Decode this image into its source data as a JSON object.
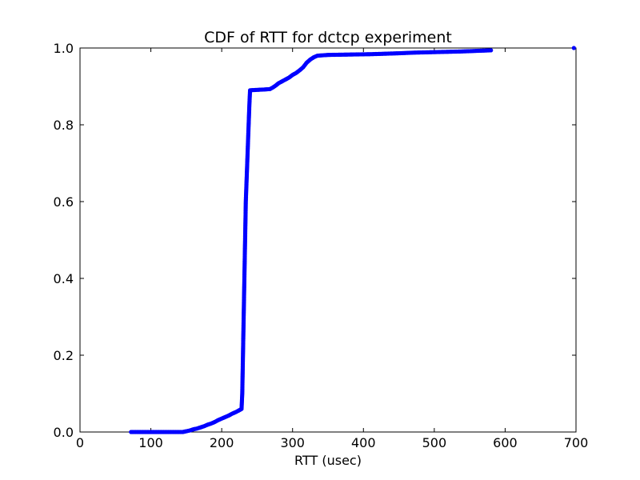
{
  "chart_data": {
    "type": "scatter",
    "title": "CDF of RTT for dctcp experiment",
    "xlabel": "RTT (usec)",
    "ylabel": "",
    "xlim": [
      0,
      700
    ],
    "ylim": [
      0,
      1.0
    ],
    "xticks": [
      0,
      100,
      200,
      300,
      400,
      500,
      600,
      700
    ],
    "xtick_labels": [
      "0",
      "100",
      "200",
      "300",
      "400",
      "500",
      "600",
      "700"
    ],
    "yticks": [
      0.0,
      0.2,
      0.4,
      0.6,
      0.8,
      1.0
    ],
    "ytick_labels": [
      "0.0",
      "0.2",
      "0.4",
      "0.6",
      "0.8",
      "1.0"
    ],
    "grid": false,
    "marker_color": "#0000ff",
    "series": [
      {
        "name": "",
        "points": [
          [
            72,
            0.0
          ],
          [
            82,
            0.0
          ],
          [
            92,
            0.0
          ],
          [
            108,
            0.0
          ],
          [
            113,
            0.0
          ],
          [
            145,
            0.0
          ],
          [
            150,
            0.002
          ],
          [
            155,
            0.004
          ],
          [
            160,
            0.007
          ],
          [
            165,
            0.009
          ],
          [
            170,
            0.012
          ],
          [
            175,
            0.015
          ],
          [
            180,
            0.019
          ],
          [
            185,
            0.022
          ],
          [
            190,
            0.026
          ],
          [
            195,
            0.031
          ],
          [
            200,
            0.035
          ],
          [
            205,
            0.039
          ],
          [
            210,
            0.043
          ],
          [
            215,
            0.048
          ],
          [
            220,
            0.052
          ],
          [
            225,
            0.057
          ],
          [
            228,
            0.06
          ],
          [
            229,
            0.1
          ],
          [
            230,
            0.2
          ],
          [
            231,
            0.3
          ],
          [
            232,
            0.4
          ],
          [
            233,
            0.5
          ],
          [
            234,
            0.6
          ],
          [
            236,
            0.7
          ],
          [
            238,
            0.8
          ],
          [
            239,
            0.85
          ],
          [
            240,
            0.89
          ],
          [
            260,
            0.892
          ],
          [
            268,
            0.893
          ],
          [
            272,
            0.897
          ],
          [
            276,
            0.902
          ],
          [
            280,
            0.908
          ],
          [
            285,
            0.913
          ],
          [
            290,
            0.918
          ],
          [
            295,
            0.923
          ],
          [
            300,
            0.93
          ],
          [
            305,
            0.935
          ],
          [
            310,
            0.942
          ],
          [
            315,
            0.95
          ],
          [
            320,
            0.962
          ],
          [
            325,
            0.97
          ],
          [
            330,
            0.976
          ],
          [
            335,
            0.98
          ],
          [
            350,
            0.982
          ],
          [
            412,
            0.984
          ],
          [
            445,
            0.986
          ],
          [
            472,
            0.988
          ],
          [
            538,
            0.991
          ],
          [
            580,
            0.994
          ],
          [
            697,
            1.0
          ]
        ]
      }
    ]
  }
}
